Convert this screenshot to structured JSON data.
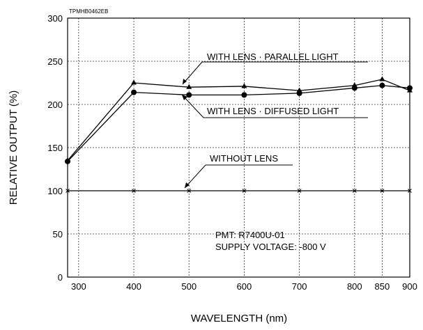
{
  "chart_data": {
    "type": "line",
    "code": "TPMHB0462EB",
    "xlabel": "WAVELENGTH (nm)",
    "ylabel": "RELATIVE OUTPUT (%)",
    "xlim": [
      280,
      900
    ],
    "ylim": [
      0,
      300
    ],
    "xticks": [
      300,
      400,
      500,
      600,
      700,
      800,
      850,
      900
    ],
    "yticks": [
      0,
      50,
      100,
      150,
      200,
      250,
      300
    ],
    "grid": true,
    "x": [
      280,
      400,
      500,
      600,
      700,
      800,
      850,
      900
    ],
    "series": [
      {
        "name": "WITH LENS · PARALLEL LIGHT",
        "marker": "triangle",
        "values": [
          135,
          225,
          220,
          221,
          216,
          222,
          229,
          216
        ]
      },
      {
        "name": "WITH LENS · DIFFUSED LIGHT",
        "marker": "circle",
        "values": [
          134,
          214,
          211,
          211,
          213,
          219,
          222,
          219
        ]
      },
      {
        "name": "WITHOUT LENS",
        "marker": "x",
        "values": [
          100,
          100,
          100,
          100,
          100,
          100,
          100,
          100
        ]
      }
    ],
    "annotation_lines": [
      "PMT: R7400U-01",
      "SUPPLY VOLTAGE: -800 V"
    ]
  }
}
